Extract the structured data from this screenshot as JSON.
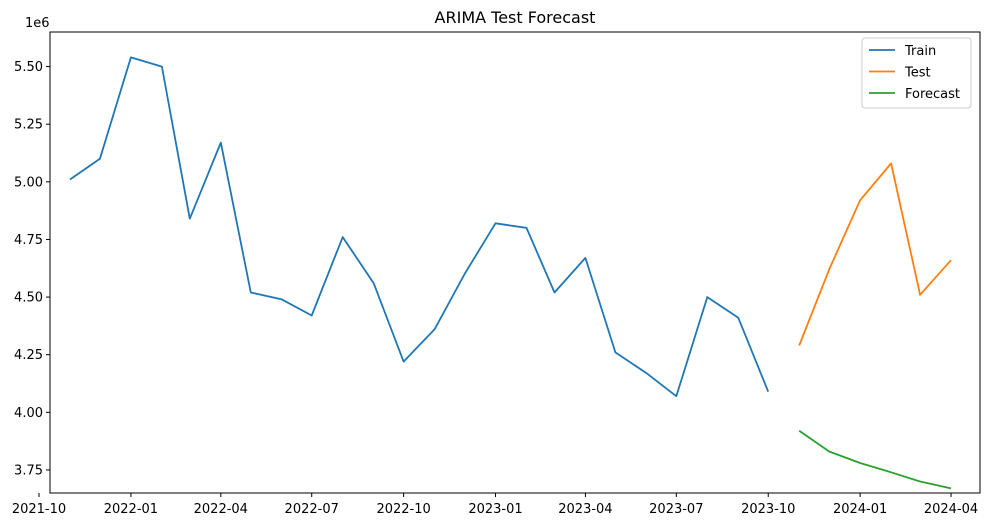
{
  "chart_data": {
    "type": "line",
    "title": "ARIMA Test Forecast",
    "xlabel": "",
    "ylabel": "",
    "y_multiplier_label": "1e6",
    "xlim": [
      "2021-10-12",
      "2024-04-30"
    ],
    "ylim": [
      3.65,
      5.65
    ],
    "x_ticks": [
      "2021-10",
      "2022-01",
      "2022-04",
      "2022-07",
      "2022-10",
      "2023-01",
      "2023-04",
      "2023-07",
      "2023-10",
      "2024-01",
      "2024-04"
    ],
    "y_ticks": [
      "3.75",
      "4.00",
      "4.25",
      "4.50",
      "4.75",
      "5.00",
      "5.25",
      "5.50"
    ],
    "grid": false,
    "legend_position": "top-right",
    "series": [
      {
        "name": "Train",
        "color": "#1f77b4",
        "x": [
          "2021-11-01",
          "2021-12-01",
          "2022-01-01",
          "2022-02-01",
          "2022-03-01",
          "2022-04-01",
          "2022-05-01",
          "2022-06-01",
          "2022-07-01",
          "2022-08-01",
          "2022-09-01",
          "2022-10-01",
          "2022-11-01",
          "2022-12-01",
          "2023-01-01",
          "2023-02-01",
          "2023-03-01",
          "2023-04-01",
          "2023-05-01",
          "2023-06-01",
          "2023-07-01",
          "2023-08-01",
          "2023-09-01",
          "2023-10-01"
        ],
        "y": [
          5.01,
          5.1,
          5.54,
          5.5,
          4.84,
          5.17,
          4.52,
          4.49,
          4.42,
          4.76,
          4.56,
          4.22,
          4.36,
          4.6,
          4.82,
          4.8,
          4.52,
          4.67,
          4.26,
          4.17,
          4.07,
          4.5,
          4.41,
          4.09
        ]
      },
      {
        "name": "Test",
        "color": "#ff7f0e",
        "x": [
          "2023-11-01",
          "2023-12-01",
          "2024-01-01",
          "2024-02-01",
          "2024-03-01",
          "2024-04-01"
        ],
        "y": [
          4.29,
          4.62,
          4.92,
          5.08,
          4.51,
          4.66
        ]
      },
      {
        "name": "Forecast",
        "color": "#2ca02c",
        "x": [
          "2023-11-01",
          "2023-12-01",
          "2024-01-01",
          "2024-02-01",
          "2024-03-01",
          "2024-04-01"
        ],
        "y": [
          3.92,
          3.83,
          3.78,
          3.74,
          3.7,
          3.67
        ]
      }
    ]
  }
}
